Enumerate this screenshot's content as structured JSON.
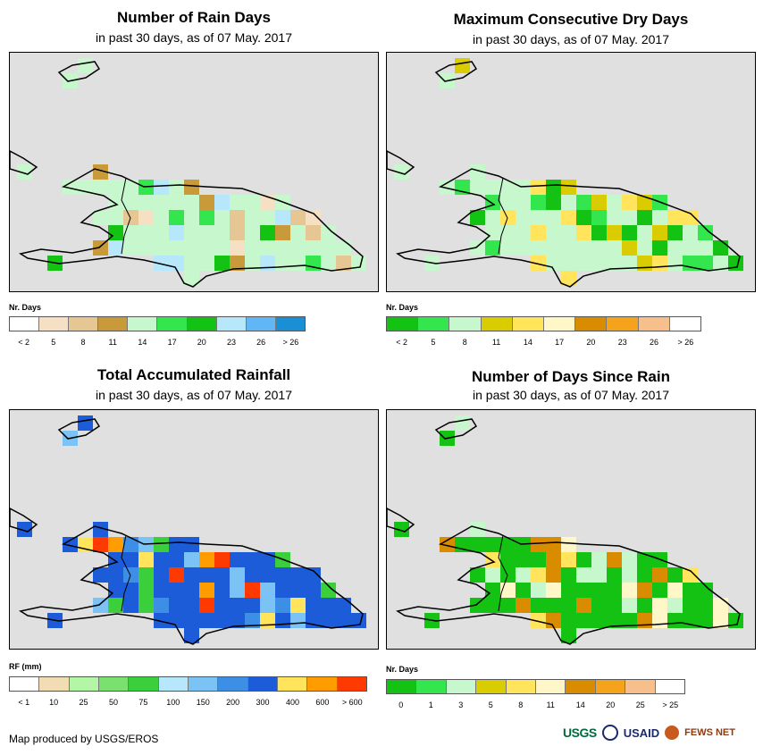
{
  "panels": [
    {
      "title": "Number of Rain Days",
      "subtitle": "in past 30 days, as of 07 May. 2017",
      "legend_title": "Nr. Days",
      "legend_labels": [
        "< 2",
        "5",
        "8",
        "11",
        "14",
        "17",
        "20",
        "23",
        "26",
        "> 26"
      ],
      "legend_colors": [
        "#ffffff",
        "#f5e0c3",
        "#e6c794",
        "#c99a3a",
        "#c7f7cc",
        "#33e64d",
        "#14c214",
        "#b7e7fb",
        "#61b7f5",
        "#1a8fd6"
      ],
      "land_color": "#c7f7cc",
      "patch_colors": [
        "#14c214",
        "#33e64d",
        "#b7e7fb",
        "#c99a3a",
        "#f5e0c3",
        "#e6c794"
      ]
    },
    {
      "title": "Maximum Consecutive Dry Days",
      "subtitle": "in past 30 days, as of 07 May. 2017",
      "legend_title": "Nr. Days",
      "legend_labels": [
        "< 2",
        "5",
        "8",
        "11",
        "14",
        "17",
        "20",
        "23",
        "26",
        "> 26"
      ],
      "legend_colors": [
        "#14c214",
        "#33e64d",
        "#c7f7cc",
        "#d9cc00",
        "#ffe45c",
        "#fff7c7",
        "#d98c00",
        "#f5a31a",
        "#f7bf8c",
        "#ffffff"
      ],
      "land_color": "#c7f7cc",
      "patch_colors": [
        "#33e64d",
        "#d9cc00",
        "#ffe45c",
        "#14c214"
      ]
    },
    {
      "title": "Total Accumulated Rainfall",
      "subtitle": "in past 30 days, as of 07 May. 2017",
      "legend_title": "RF (mm)",
      "legend_labels": [
        "< 1",
        "10",
        "25",
        "50",
        "75",
        "100",
        "150",
        "200",
        "300",
        "400",
        "600",
        "> 600"
      ],
      "legend_colors": [
        "#ffffff",
        "#f2dcb3",
        "#b3f7a6",
        "#7ae070",
        "#3ccf3c",
        "#b7e7fb",
        "#7cc3f5",
        "#3d8fe6",
        "#1c5cd9",
        "#ffe45c",
        "#ff9c00",
        "#ff3a00"
      ],
      "land_color": "#1c5cd9",
      "patch_colors": [
        "#ff9c00",
        "#ffe45c",
        "#ff3a00",
        "#3d8fe6",
        "#3ccf3c",
        "#7cc3f5"
      ]
    },
    {
      "title": "Number of Days Since Rain",
      "subtitle": "in past 30 days, as of 07 May. 2017",
      "legend_title": "Nr. Days",
      "legend_labels": [
        "0",
        "1",
        "3",
        "5",
        "8",
        "11",
        "14",
        "20",
        "25",
        "> 25"
      ],
      "legend_colors": [
        "#14c214",
        "#33e64d",
        "#c7f7cc",
        "#d9cc00",
        "#ffe45c",
        "#fff7c7",
        "#d98c00",
        "#f5a31a",
        "#f7bf8c",
        "#ffffff"
      ],
      "land_color": "#14c214",
      "patch_colors": [
        "#ffe45c",
        "#d98c00",
        "#c7f7cc",
        "#fff7c7"
      ]
    }
  ],
  "credit": "Map produced by USGS/EROS",
  "logos": [
    "USGS",
    "USAID",
    "FEWS NET"
  ]
}
